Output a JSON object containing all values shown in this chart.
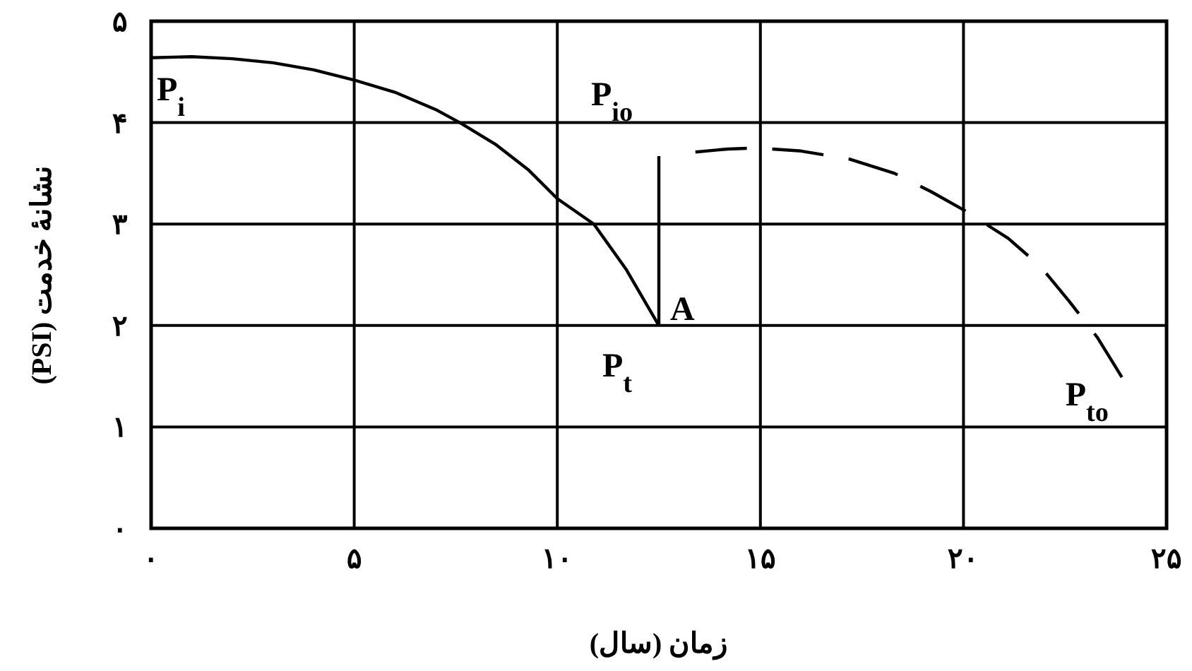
{
  "chart_data": {
    "type": "line",
    "xlabel": "زمان (سال)",
    "ylabel": "نشانهٔ خدمت (PSI)",
    "xlim": [
      0,
      25
    ],
    "ylim": [
      0,
      5
    ],
    "xticks": [
      {
        "value": 0,
        "label": "۰"
      },
      {
        "value": 5,
        "label": "۵"
      },
      {
        "value": 10,
        "label": "۱۰"
      },
      {
        "value": 15,
        "label": "۱۵"
      },
      {
        "value": 20,
        "label": "۲۰"
      },
      {
        "value": 25,
        "label": "۲۵"
      }
    ],
    "yticks": [
      {
        "value": 0,
        "label": "۰"
      },
      {
        "value": 1,
        "label": "۱"
      },
      {
        "value": 2,
        "label": "۲"
      },
      {
        "value": 3,
        "label": "۳"
      },
      {
        "value": 4,
        "label": "۴"
      },
      {
        "value": 5,
        "label": "۵"
      }
    ],
    "grid": true,
    "marker": "none",
    "series": [
      {
        "color": "#000000",
        "line_style": "solid",
        "x": [
          0,
          1,
          2,
          3,
          4,
          5,
          6,
          7,
          7.6,
          8.5,
          9.3,
          10,
          10.9,
          11.7,
          12.5
        ],
        "values": [
          4.64,
          4.65,
          4.63,
          4.59,
          4.52,
          4.42,
          4.3,
          4.13,
          4.0,
          3.78,
          3.53,
          3.25,
          3.0,
          2.55,
          2.0
        ]
      },
      {
        "color": "#000000",
        "line_style": "solid",
        "x": [
          12.5,
          12.5
        ],
        "values": [
          2.0,
          3.67
        ]
      },
      {
        "color": "#000000",
        "line_style": "dashed",
        "x": [
          13.4,
          14.2,
          14.9,
          16,
          17.2,
          18.3,
          19.2,
          20,
          21.1,
          21.9,
          22.6,
          23.3,
          23.9
        ],
        "values": [
          3.71,
          3.74,
          3.75,
          3.72,
          3.64,
          3.5,
          3.32,
          3.14,
          2.86,
          2.58,
          2.24,
          1.88,
          1.49
        ]
      }
    ],
    "annotations": [
      {
        "text": "P$_{i}$",
        "x": 0,
        "y": 4.64
      },
      {
        "text": "P$_{io}$",
        "x": 12.5,
        "y": 3.67
      },
      {
        "text": "A",
        "x": 12.5,
        "y": 2.0
      },
      {
        "text": "P$_{t}$",
        "x": 12.5,
        "y": 2.0
      },
      {
        "text": "P$_{to}$",
        "x": 23.9,
        "y": 1.49
      }
    ]
  }
}
